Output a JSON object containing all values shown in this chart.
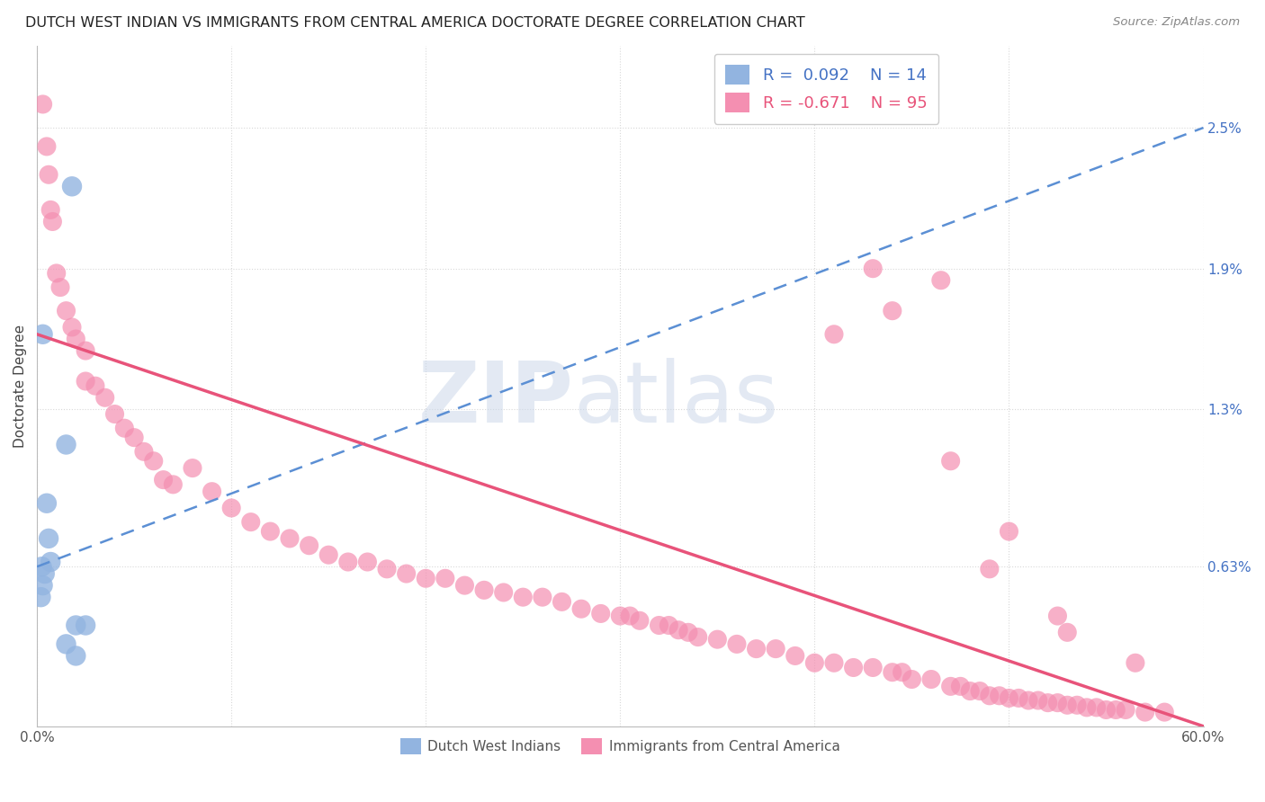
{
  "title": "DUTCH WEST INDIAN VS IMMIGRANTS FROM CENTRAL AMERICA DOCTORATE DEGREE CORRELATION CHART",
  "source": "Source: ZipAtlas.com",
  "ylabel": "Doctorate Degree",
  "xlim": [
    0.0,
    60.0
  ],
  "ylim": [
    -0.05,
    2.85
  ],
  "x_ticks": [
    0.0,
    10.0,
    20.0,
    30.0,
    40.0,
    50.0,
    60.0
  ],
  "x_tick_labels": [
    "0.0%",
    "",
    "",
    "",
    "",
    "",
    "60.0%"
  ],
  "y_ticks_right": [
    0.63,
    1.3,
    1.9,
    2.5
  ],
  "y_tick_labels_right": [
    "0.63%",
    "1.3%",
    "1.9%",
    "2.5%"
  ],
  "blue_color": "#92b4e0",
  "pink_color": "#f48fb1",
  "blue_line_color": "#5b8fd4",
  "pink_line_color": "#e8537a",
  "blue_label": "Dutch West Indians",
  "pink_label": "Immigrants from Central America",
  "blue_r": 0.092,
  "blue_n": 14,
  "pink_r": -0.671,
  "pink_n": 95,
  "blue_points_x": [
    1.8,
    0.3,
    0.5,
    0.6,
    0.7,
    0.25,
    0.4,
    0.3,
    0.2,
    1.5,
    2.0,
    2.5,
    1.5,
    2.0
  ],
  "blue_points_y": [
    2.25,
    1.62,
    0.9,
    0.75,
    0.65,
    0.63,
    0.6,
    0.55,
    0.5,
    1.15,
    0.38,
    0.38,
    0.3,
    0.25
  ],
  "pink_points_x": [
    0.3,
    0.5,
    0.6,
    0.7,
    0.8,
    1.0,
    1.2,
    1.5,
    1.8,
    2.0,
    2.5,
    2.5,
    3.0,
    3.5,
    4.0,
    4.5,
    5.0,
    5.5,
    6.0,
    6.5,
    7.0,
    8.0,
    9.0,
    10.0,
    11.0,
    12.0,
    13.0,
    14.0,
    15.0,
    16.0,
    17.0,
    18.0,
    19.0,
    20.0,
    21.0,
    22.0,
    23.0,
    24.0,
    25.0,
    26.0,
    27.0,
    28.0,
    29.0,
    30.0,
    30.5,
    31.0,
    32.0,
    32.5,
    33.0,
    33.5,
    34.0,
    35.0,
    36.0,
    37.0,
    38.0,
    39.0,
    40.0,
    41.0,
    42.0,
    43.0,
    44.0,
    44.5,
    45.0,
    46.0,
    47.0,
    47.5,
    48.0,
    48.5,
    49.0,
    49.5,
    50.0,
    50.5,
    51.0,
    51.5,
    52.0,
    52.5,
    53.0,
    53.5,
    54.0,
    54.5,
    55.0,
    55.5,
    56.0,
    57.0,
    58.0,
    44.0,
    47.0,
    50.0,
    53.0,
    56.5,
    43.0,
    46.5,
    49.0,
    52.5,
    41.0
  ],
  "pink_points_y": [
    2.6,
    2.42,
    2.3,
    2.15,
    2.1,
    1.88,
    1.82,
    1.72,
    1.65,
    1.6,
    1.55,
    1.42,
    1.4,
    1.35,
    1.28,
    1.22,
    1.18,
    1.12,
    1.08,
    1.0,
    0.98,
    1.05,
    0.95,
    0.88,
    0.82,
    0.78,
    0.75,
    0.72,
    0.68,
    0.65,
    0.65,
    0.62,
    0.6,
    0.58,
    0.58,
    0.55,
    0.53,
    0.52,
    0.5,
    0.5,
    0.48,
    0.45,
    0.43,
    0.42,
    0.42,
    0.4,
    0.38,
    0.38,
    0.36,
    0.35,
    0.33,
    0.32,
    0.3,
    0.28,
    0.28,
    0.25,
    0.22,
    0.22,
    0.2,
    0.2,
    0.18,
    0.18,
    0.15,
    0.15,
    0.12,
    0.12,
    0.1,
    0.1,
    0.08,
    0.08,
    0.07,
    0.07,
    0.06,
    0.06,
    0.05,
    0.05,
    0.04,
    0.04,
    0.03,
    0.03,
    0.02,
    0.02,
    0.02,
    0.01,
    0.01,
    1.72,
    1.08,
    0.78,
    0.35,
    0.22,
    1.9,
    1.85,
    0.62,
    0.42,
    1.62
  ],
  "watermark_zip": "ZIP",
  "watermark_atlas": "atlas",
  "background_color": "#ffffff",
  "grid_color": "#d8d8d8",
  "blue_line_x0": 0.0,
  "blue_line_y0": 0.63,
  "blue_line_x1": 60.0,
  "blue_line_y1": 2.5,
  "pink_line_x0": 0.0,
  "pink_line_y0": 1.62,
  "pink_line_x1": 60.0,
  "pink_line_y1": -0.05
}
